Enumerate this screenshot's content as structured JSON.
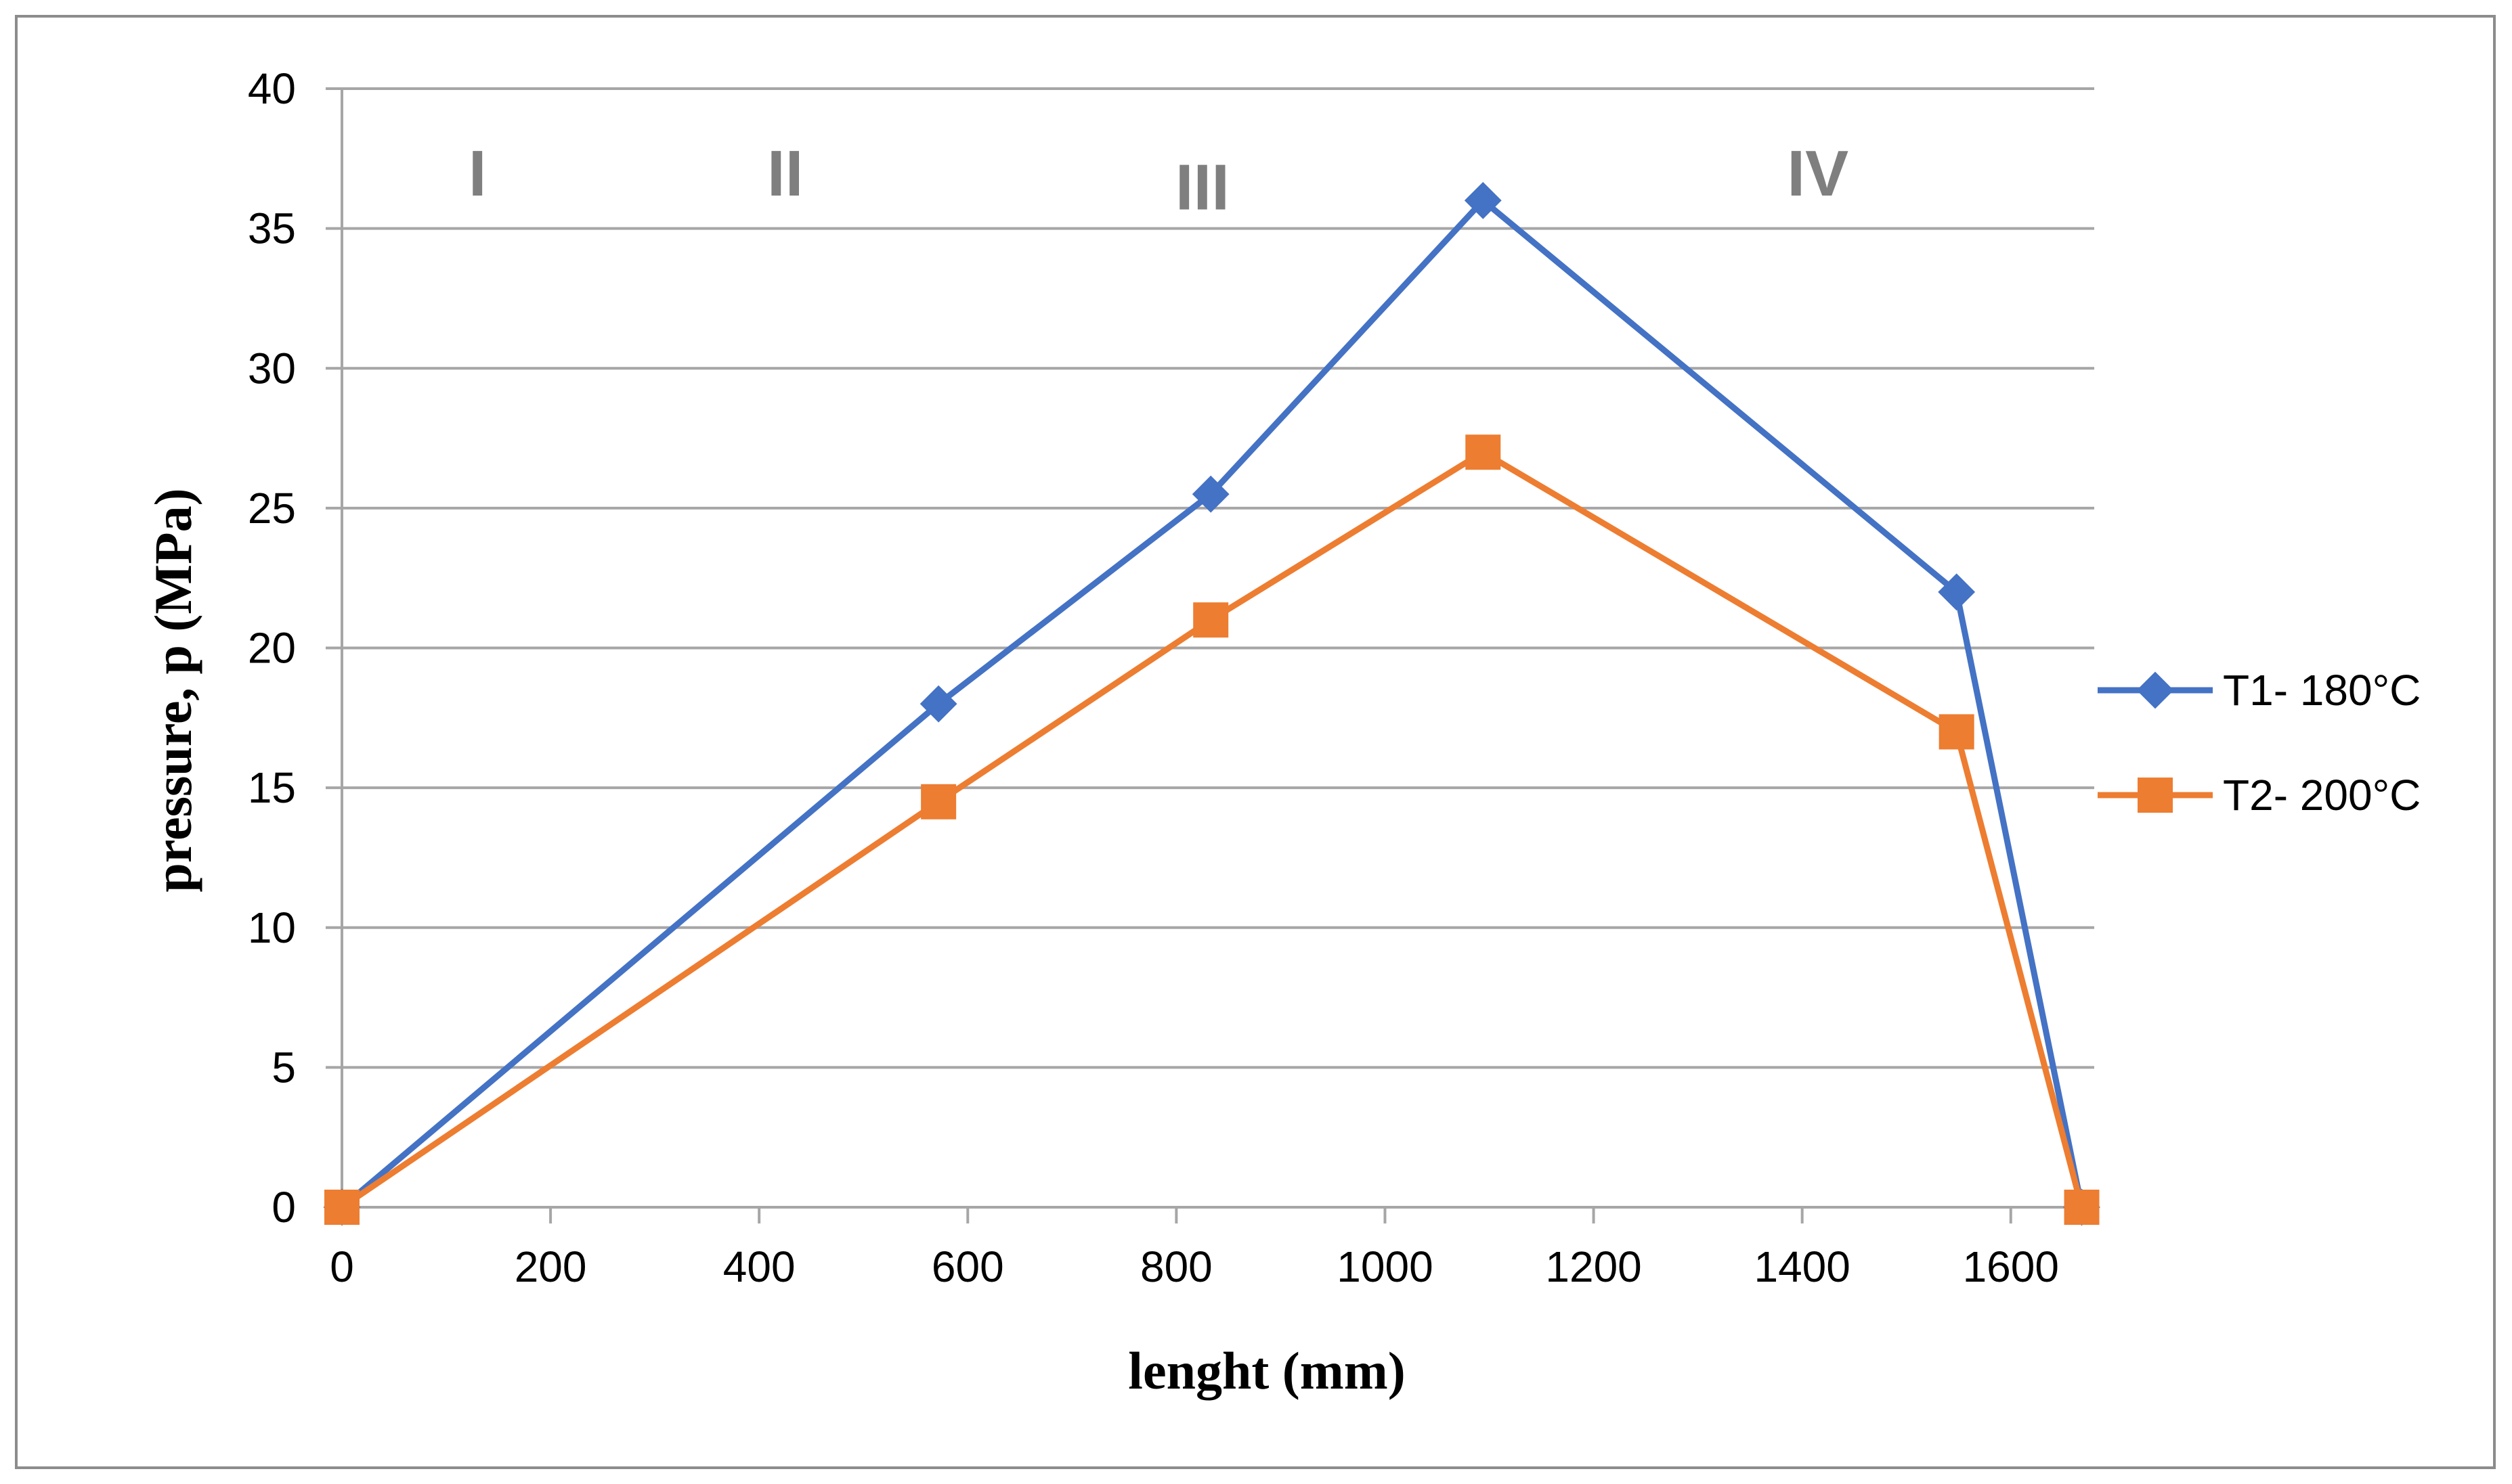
{
  "chart_data": {
    "type": "line",
    "title": "",
    "xlabel": "lenght (mm)",
    "ylabel": "pressure, p (MPa)",
    "xlim": [
      0,
      1680
    ],
    "ylim": [
      0,
      40
    ],
    "xticks": [
      0,
      200,
      400,
      600,
      800,
      1000,
      1200,
      1400,
      1600
    ],
    "yticks": [
      0,
      5,
      10,
      15,
      20,
      25,
      30,
      35,
      40
    ],
    "grid": "horizontal",
    "legend_position": "right",
    "series": [
      {
        "name": "T1- 180°C",
        "color": "#4472c4",
        "marker": "diamond",
        "x": [
          0,
          572,
          833,
          1094,
          1548,
          1668
        ],
        "y": [
          0,
          18,
          25.5,
          36,
          22,
          0
        ]
      },
      {
        "name": "T2- 200°C",
        "color": "#ed7d31",
        "marker": "square",
        "x": [
          0,
          572,
          833,
          1094,
          1548,
          1668
        ],
        "y": [
          0,
          14.5,
          21,
          27,
          17,
          0
        ]
      }
    ],
    "annotations": [
      {
        "text": "I",
        "x": 130,
        "y": 37
      },
      {
        "text": "II",
        "x": 425,
        "y": 37
      },
      {
        "text": "III",
        "x": 825,
        "y": 36.5
      },
      {
        "text": "IV",
        "x": 1415,
        "y": 37
      }
    ]
  }
}
